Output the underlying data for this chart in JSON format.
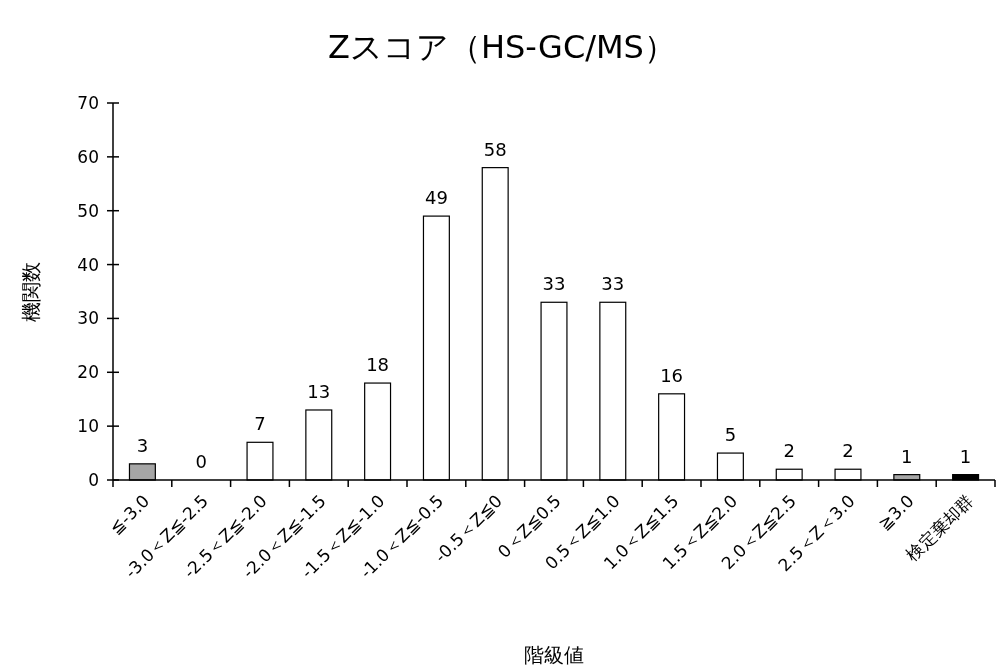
{
  "chart_data": {
    "type": "bar",
    "title": "Zスコア（HS-GC/MS）",
    "xlabel": "階級値",
    "ylabel": "機関数",
    "categories": [
      "≦-3.0",
      "-3.0＜Z≦-2.5",
      "-2.5＜Z≦-2.0",
      "-2.0＜Z≦-1.5",
      "-1.5＜Z≦-1.0",
      "-1.0＜Z≦-0.5",
      "-0.5＜Z≦0",
      "0＜Z≦0.5",
      "0.5＜Z≦1.0",
      "1.0＜Z≦1.5",
      "1.5＜Z≦2.0",
      "2.0＜Z≦2.5",
      "2.5＜Z＜3.0",
      "≧3.0",
      "検定棄却群"
    ],
    "values": [
      3,
      0,
      7,
      13,
      18,
      49,
      58,
      33,
      33,
      16,
      5,
      2,
      2,
      1,
      1
    ],
    "colors": [
      "#a6a6a6",
      "#ffffff",
      "#ffffff",
      "#ffffff",
      "#ffffff",
      "#ffffff",
      "#ffffff",
      "#ffffff",
      "#ffffff",
      "#ffffff",
      "#ffffff",
      "#ffffff",
      "#ffffff",
      "#a6a6a6",
      "#000000"
    ],
    "ylim": [
      0,
      70
    ],
    "yticks": [
      0,
      10,
      20,
      30,
      40,
      50,
      60,
      70
    ],
    "data_labels": true
  }
}
